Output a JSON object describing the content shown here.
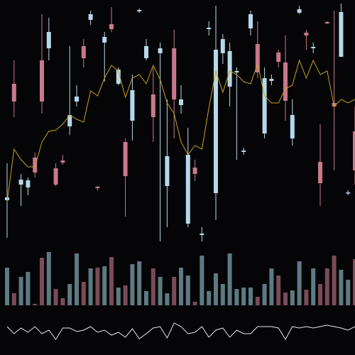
{
  "chart_data": {
    "type": "candlestick",
    "up_color": "#b7d8e8",
    "down_color": "#c9788c",
    "volume_up_color": "#5d7b80",
    "volume_down_color": "#7a4b58",
    "line_color": "#c8a020",
    "osc_color": "#e8e8e8",
    "ylim": [
      0,
      350
    ],
    "volume_ylim": [
      0,
      80
    ],
    "osc_ylim": [
      0,
      30
    ],
    "open": [
      68,
      232,
      90,
      86,
      128,
      265,
      282,
      113,
      124,
      172,
      207,
      285,
      322,
      87,
      290,
      316,
      232,
      150,
      180,
      334,
      268,
      217,
      275,
      88,
      282,
      202,
      35,
      114,
      19,
      309,
      78,
      275,
      228,
      248,
      136,
      310,
      288,
      162,
      236,
      276,
      262,
      155,
      332,
      304,
      282,
      122,
      319,
      205,
      270,
      78,
      165
    ],
    "high": [
      120,
      265,
      105,
      100,
      135,
      330,
      325,
      120,
      132,
      285,
      230,
      295,
      335,
      88,
      305,
      340,
      255,
      155,
      245,
      338,
      295,
      255,
      290,
      210,
      308,
      230,
      170,
      125,
      30,
      320,
      342,
      302,
      290,
      255,
      142,
      335,
      320,
      255,
      245,
      280,
      300,
      210,
      342,
      308,
      290,
      175,
      320,
      335,
      345,
      82,
      200
    ],
    "low": [
      15,
      185,
      60,
      75,
      100,
      190,
      265,
      88,
      118,
      160,
      200,
      255,
      315,
      82,
      235,
      305,
      230,
      45,
      152,
      332,
      265,
      150,
      10,
      30,
      155,
      190,
      30,
      95,
      10,
      300,
      40,
      260,
      200,
      125,
      132,
      300,
      240,
      155,
      230,
      255,
      180,
      145,
      330,
      280,
      275,
      60,
      316,
      110,
      270,
      75,
      90
    ],
    "close": [
      72,
      207,
      97,
      96,
      107,
      207,
      305,
      90,
      121,
      188,
      214,
      268,
      330,
      85,
      298,
      309,
      252,
      102,
      223,
      336,
      285,
      185,
      282,
      130,
      210,
      210,
      132,
      105,
      21,
      311,
      280,
      295,
      278,
      250,
      138,
      330,
      248,
      240,
      239,
      263,
      208,
      188,
      337,
      300,
      284,
      92,
      317,
      200,
      333,
      79,
      110
    ],
    "volume": [
      53,
      17,
      40,
      47,
      2,
      67,
      75,
      23,
      10,
      30,
      73,
      33,
      52,
      53,
      55,
      68,
      25,
      28,
      58,
      62,
      20,
      52,
      40,
      17,
      40,
      53,
      42,
      5,
      70,
      20,
      45,
      30,
      73,
      23,
      25,
      25,
      12,
      30,
      52,
      42,
      18,
      21,
      62,
      22,
      52,
      30,
      52,
      70,
      50,
      36,
      65
    ],
    "ma_values": [
      65,
      140,
      125,
      115,
      115,
      150,
      165,
      167,
      175,
      188,
      182,
      178,
      222,
      215,
      240,
      258,
      250,
      213,
      240,
      245,
      232,
      258,
      238,
      205,
      190,
      150,
      132,
      145,
      140,
      198,
      250,
      220,
      250,
      245,
      235,
      232,
      260,
      215,
      205,
      205,
      225,
      230,
      265,
      240,
      265,
      245,
      250,
      200,
      210,
      205,
      210
    ],
    "osc_values": [
      20,
      10,
      18,
      12,
      20,
      10,
      15,
      2,
      18,
      18,
      13,
      15,
      20,
      12,
      15,
      8,
      12,
      5,
      17,
      3,
      10,
      18,
      20,
      4,
      25,
      20,
      10,
      12,
      20,
      5,
      15,
      18,
      5,
      15,
      10,
      10,
      20,
      20,
      20,
      18,
      2,
      20,
      18,
      20,
      18,
      20,
      22,
      20,
      18,
      15,
      20
    ]
  }
}
